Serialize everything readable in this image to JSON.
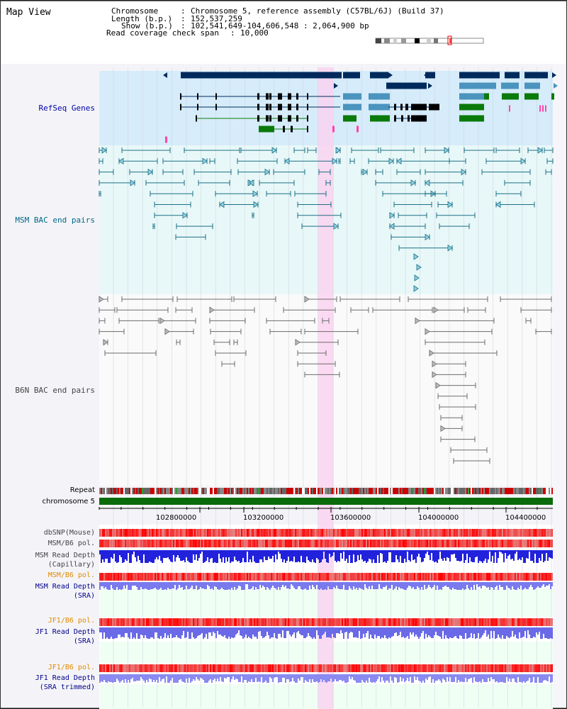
{
  "view_title": "Map View",
  "header": {
    "chromosome_key": "Chromosome",
    "chromosome_value": "Chromosome 5, reference assembly (C57BL/6J) (Build 37)",
    "length_key": "Length (b.p.)",
    "length_value": "152,537,259",
    "show_key": "Show (b.p.)",
    "show_value": "102,541,649-104,606,548 : 2,064,900 bp",
    "coverage_key": "Read coverage check span",
    "coverage_value": "10,000"
  },
  "tracks": {
    "refseq": "RefSeq Genes",
    "msm_bac": "MSM BAC end pairs",
    "b6n_bac": "B6N BAC end pairs",
    "repeat": "Repeat",
    "chromosome": "chromosome 5",
    "dbsnp": "dbSNP(Mouse)",
    "msm_b6_pol_1": "MSM/B6 pol.",
    "msm_depth_cap_1": "MSM Read Depth",
    "msm_depth_cap_2": "(Capillary)",
    "msm_b6_pol_2": "MSM/B6 pol.",
    "msm_depth_sra_1": "MSM Read Depth",
    "msm_depth_sra_2": "(SRA)",
    "jf1_b6_pol_1": "JF1/B6 pol.",
    "jf1_depth_sra_1": "JF1 Read Depth",
    "jf1_depth_sra_2": "(SRA)",
    "jf1_b6_pol_2": "JF1/B6 pol.",
    "jf1_depth_trim_1": "JF1 Read Depth",
    "jf1_depth_trim_2": "(SRA trimmed)"
  },
  "axis_ticks": [
    "102800000",
    "103200000",
    "103600000",
    "104000000",
    "104400000"
  ],
  "colors": {
    "refseq_label": "#0000aa",
    "msm_label": "#006688",
    "b6n_label": "#444444",
    "gene_navy": "#002a5c",
    "gene_blue": "#4a94be",
    "gene_green": "#0a7a0a",
    "orange_label": "#e08a00",
    "navy_label": "#00008b",
    "highlight": "#f9d3f0",
    "refseq_bg": "#d6ecfa",
    "msm_bg": "#e8f8f8",
    "sra_bg": "#f0fff4"
  }
}
